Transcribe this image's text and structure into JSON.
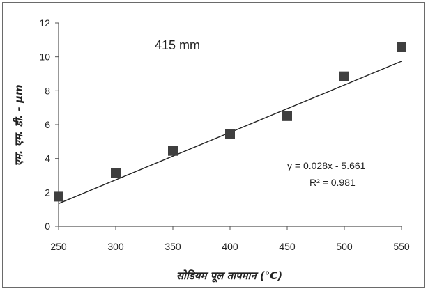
{
  "chart_data": {
    "type": "scatter",
    "title": "",
    "annotation": "415 mm",
    "xlabel": "सोडियम पूल तापमान (°C)",
    "ylabel": "एम. एम. डी. - μm",
    "xlim": [
      250,
      550
    ],
    "ylim": [
      0,
      12
    ],
    "x_ticks": [
      "250",
      "300",
      "350",
      "400",
      "450",
      "500",
      "550"
    ],
    "y_ticks": [
      "0",
      "2",
      "4",
      "6",
      "8",
      "10",
      "12"
    ],
    "grid": false,
    "marker_color": "#3f3f3f",
    "line_color": "#222222",
    "series": [
      {
        "x": [
          250,
          300,
          350,
          400,
          450,
          500,
          550
        ],
        "y": [
          1.75,
          3.15,
          4.45,
          5.45,
          6.5,
          8.85,
          10.6
        ]
      }
    ],
    "trendline": {
      "slope": 0.028,
      "intercept": -5.661,
      "equation": "y = 0.028x - 5.661",
      "r_squared": "R² = 0.981"
    }
  }
}
